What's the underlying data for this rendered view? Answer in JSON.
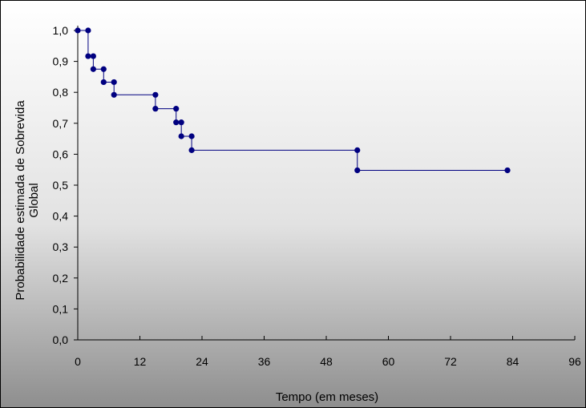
{
  "chart_data": {
    "type": "line",
    "step": true,
    "title": "",
    "xlabel": "Tempo (em meses)",
    "ylabel_lines": [
      "Probabilidade estimada de Sobrevida",
      "Global"
    ],
    "xlim": [
      0,
      96
    ],
    "ylim": [
      0,
      1
    ],
    "xticks": [
      0,
      12,
      24,
      36,
      48,
      60,
      72,
      84,
      96
    ],
    "xtick_labels": [
      "0",
      "12",
      "24",
      "36",
      "48",
      "60",
      "72",
      "84",
      "96"
    ],
    "yticks": [
      0,
      0.1,
      0.2,
      0.3,
      0.4,
      0.5,
      0.6,
      0.7,
      0.8,
      0.9,
      1.0
    ],
    "ytick_labels": [
      "0,0",
      "0,1",
      "0,2",
      "0,3",
      "0,4",
      "0,5",
      "0,6",
      "0,7",
      "0,8",
      "0,9",
      "1,0"
    ],
    "grid": false,
    "legend": "none",
    "series": [
      {
        "color": "#000080",
        "points": [
          {
            "x": 0,
            "y": 1.0
          },
          {
            "x": 2,
            "y": 1.0
          },
          {
            "x": 2,
            "y": 0.917
          },
          {
            "x": 3,
            "y": 0.917
          },
          {
            "x": 3,
            "y": 0.875
          },
          {
            "x": 5,
            "y": 0.875
          },
          {
            "x": 5,
            "y": 0.833
          },
          {
            "x": 7,
            "y": 0.833
          },
          {
            "x": 7,
            "y": 0.792
          },
          {
            "x": 15,
            "y": 0.792
          },
          {
            "x": 15,
            "y": 0.747
          },
          {
            "x": 19,
            "y": 0.747
          },
          {
            "x": 19,
            "y": 0.703
          },
          {
            "x": 20,
            "y": 0.703
          },
          {
            "x": 20,
            "y": 0.658
          },
          {
            "x": 22,
            "y": 0.658
          },
          {
            "x": 22,
            "y": 0.613
          },
          {
            "x": 54,
            "y": 0.613
          },
          {
            "x": 54,
            "y": 0.548
          },
          {
            "x": 83,
            "y": 0.548
          }
        ]
      }
    ]
  }
}
